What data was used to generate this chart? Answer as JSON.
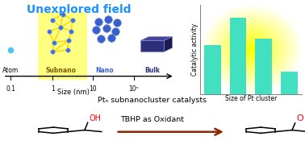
{
  "title_text": "Unexplored field",
  "title_color": "#1E90FF",
  "title_fontsize": 10,
  "bar_values": [
    0.55,
    0.85,
    0.62,
    0.25
  ],
  "bar_color": "#40E0C0",
  "bar_xlabel": "Size of Pt cluster",
  "bar_ylabel": "Catalytic activity",
  "reaction_line1": "Ptₙ subnanocluster catalysts",
  "reaction_line2": "TBHP as Oxidant",
  "yellow_bg_color": "#FFFF80",
  "background_color": "#FFFFFF",
  "atom_color": "#4FC3F7",
  "cluster_bond_color": "#FFD700",
  "cluster_node_color": "#3A6FE8",
  "nano_color": "#3A5FCD",
  "bulk_front_color": "#2E2F7A",
  "bulk_top_color": "#4545A0",
  "bulk_right_color": "#1A1B50",
  "arrow_color": "#8B2500"
}
